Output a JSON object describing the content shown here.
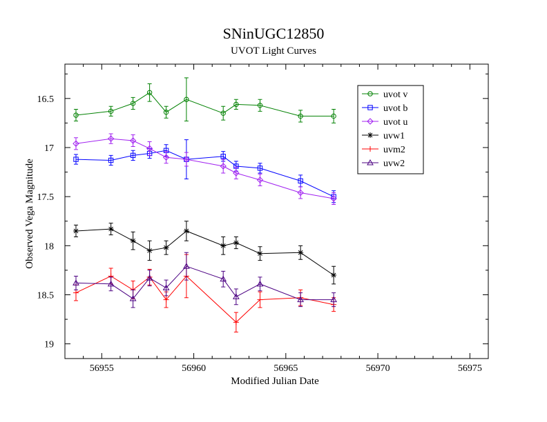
{
  "chart_data": {
    "type": "line",
    "title": "SNinUGC12850",
    "subtitle": "UVOT Light Curves",
    "xlabel": "Modified Julian Date",
    "ylabel": "Observed Vega Magnitude",
    "xlim": [
      56953,
      56976
    ],
    "ylim": [
      19.15,
      16.15
    ],
    "y_inverted": true,
    "x_ticks": [
      56955,
      56960,
      56965,
      56970,
      56975
    ],
    "x_tick_labels": [
      "56955",
      "56960",
      "56965",
      "56970",
      "56975"
    ],
    "y_ticks": [
      16.5,
      17,
      17.5,
      18,
      18.5,
      19
    ],
    "y_tick_labels": [
      "16.5",
      "17",
      "17.5",
      "18",
      "18.5",
      "19"
    ],
    "legend_position": "top-right",
    "series": [
      {
        "name": "uvot v",
        "color": "#008000",
        "marker": "circle",
        "x": [
          56953.6,
          56955.5,
          56956.7,
          56957.6,
          56958.5,
          56959.6,
          56961.6,
          56962.3,
          56963.6,
          56965.8,
          56967.6
        ],
        "y": [
          16.67,
          16.63,
          16.55,
          16.44,
          16.64,
          16.51,
          16.65,
          16.56,
          16.57,
          16.68,
          16.68
        ],
        "err": [
          0.06,
          0.05,
          0.06,
          0.09,
          0.06,
          0.22,
          0.07,
          0.05,
          0.06,
          0.06,
          0.07
        ]
      },
      {
        "name": "uvot b",
        "color": "#0000ff",
        "marker": "square",
        "x": [
          56953.6,
          56955.5,
          56956.7,
          56957.6,
          56958.5,
          56959.6,
          56961.6,
          56962.3,
          56963.6,
          56965.8,
          56967.6
        ],
        "y": [
          17.12,
          17.13,
          17.08,
          17.06,
          17.03,
          17.12,
          17.09,
          17.19,
          17.21,
          17.34,
          17.5
        ],
        "err": [
          0.05,
          0.05,
          0.05,
          0.05,
          0.06,
          0.2,
          0.05,
          0.05,
          0.05,
          0.06,
          0.06
        ]
      },
      {
        "name": "uvot u",
        "color": "#a020f0",
        "marker": "diamond",
        "x": [
          56953.6,
          56955.5,
          56956.7,
          56957.6,
          56958.5,
          56959.6,
          56961.6,
          56962.3,
          56963.6,
          56965.8,
          56967.6
        ],
        "y": [
          16.96,
          16.91,
          16.93,
          17.01,
          17.1,
          17.12,
          17.19,
          17.26,
          17.33,
          17.46,
          17.52
        ],
        "err": [
          0.06,
          0.05,
          0.06,
          0.07,
          0.06,
          0.07,
          0.07,
          0.06,
          0.06,
          0.06,
          0.06
        ]
      },
      {
        "name": "uvw1",
        "color": "#000000",
        "marker": "star",
        "x": [
          56953.6,
          56955.5,
          56956.7,
          56957.6,
          56958.5,
          56959.6,
          56961.6,
          56962.3,
          56963.6,
          56965.8,
          56967.6
        ],
        "y": [
          17.85,
          17.83,
          17.95,
          18.05,
          18.02,
          17.85,
          18.0,
          17.97,
          18.08,
          18.07,
          18.3
        ],
        "err": [
          0.06,
          0.06,
          0.09,
          0.1,
          0.07,
          0.1,
          0.09,
          0.06,
          0.07,
          0.07,
          0.09
        ]
      },
      {
        "name": "uvm2",
        "color": "#ff0000",
        "marker": "plus",
        "x": [
          56953.6,
          56955.5,
          56956.7,
          56957.6,
          56958.5,
          56959.6,
          56962.3,
          56963.6,
          56965.8,
          56967.6
        ],
        "y": [
          18.48,
          18.31,
          18.45,
          18.32,
          18.55,
          18.31,
          18.78,
          18.55,
          18.53,
          18.6
        ],
        "err": [
          0.08,
          0.08,
          0.09,
          0.08,
          0.08,
          0.22,
          0.1,
          0.08,
          0.08,
          0.07
        ]
      },
      {
        "name": "uvw2",
        "color": "#4b0082",
        "marker": "triangle",
        "x": [
          56953.6,
          56955.5,
          56956.7,
          56957.6,
          56958.5,
          56959.6,
          56961.6,
          56962.3,
          56963.6,
          56965.8,
          56967.6
        ],
        "y": [
          18.38,
          18.39,
          18.54,
          18.33,
          18.43,
          18.21,
          18.34,
          18.52,
          18.39,
          18.55,
          18.55
        ],
        "err": [
          0.07,
          0.07,
          0.09,
          0.08,
          0.08,
          0.14,
          0.08,
          0.08,
          0.07,
          0.07,
          0.07
        ]
      }
    ]
  }
}
